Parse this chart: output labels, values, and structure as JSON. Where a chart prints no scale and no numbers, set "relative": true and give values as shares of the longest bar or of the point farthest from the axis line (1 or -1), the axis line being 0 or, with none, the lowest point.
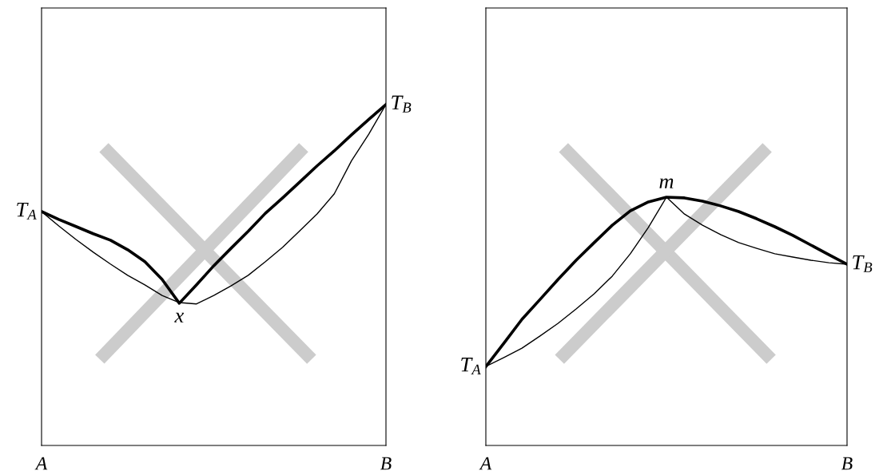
{
  "chart_data": [
    {
      "type": "line",
      "relative": true,
      "categories": [
        "A",
        null,
        null,
        null,
        null,
        null,
        null,
        null,
        null,
        null,
        null,
        null,
        null,
        null,
        null,
        null,
        null,
        null,
        null,
        null,
        "B"
      ],
      "series": [
        {
          "color": "#000000",
          "values": [
            0.686,
            0.663,
            0.642,
            0.621,
            0.602,
            0.574,
            0.539,
            0.487,
            0.417,
            0.471,
            0.527,
            0.578,
            0.628,
            0.681,
            0.726,
            0.773,
            0.82,
            0.864,
            0.911,
            0.956,
            1.0
          ]
        },
        {
          "color": "#000000",
          "values": [
            0.686,
            0.644,
            0.604,
            0.567,
            0.532,
            0.499,
            0.471,
            0.44,
            0.419,
            0.415,
            0.44,
            0.468,
            0.499,
            0.539,
            0.581,
            0.63,
            0.679,
            0.738,
            0.835,
            0.913,
            1.0
          ]
        }
      ],
      "annotations": [
        {
          "text": "T$_{A}$",
          "x": "A",
          "y": 0.686
        },
        {
          "text": "x",
          "y": 0.417
        },
        {
          "text": "T$_{B}$",
          "x": "B",
          "y": 1.0
        }
      ]
    },
    {
      "type": "line",
      "relative": true,
      "categories": [
        "A",
        null,
        null,
        null,
        null,
        null,
        null,
        null,
        null,
        null,
        null,
        null,
        null,
        null,
        null,
        null,
        null,
        null,
        null,
        null,
        "B"
      ],
      "series": [
        {
          "color": "#000000",
          "values": [
            0.318,
            0.412,
            0.508,
            0.588,
            0.669,
            0.746,
            0.817,
            0.887,
            0.945,
            0.981,
            1.0,
            0.997,
            0.984,
            0.965,
            0.942,
            0.913,
            0.881,
            0.846,
            0.807,
            0.768,
            0.73
          ]
        },
        {
          "color": "#000000",
          "values": [
            0.318,
            0.354,
            0.392,
            0.441,
            0.492,
            0.55,
            0.611,
            0.682,
            0.772,
            0.878,
            1.0,
            0.932,
            0.887,
            0.849,
            0.817,
            0.794,
            0.772,
            0.759,
            0.746,
            0.736,
            0.73
          ]
        }
      ],
      "annotations": [
        {
          "text": "T$_{A}$",
          "x": "A",
          "y": 0.318
        },
        {
          "text": "m",
          "y": 1.0
        },
        {
          "text": "T$_{B}$",
          "x": "B",
          "y": 0.73
        }
      ]
    }
  ]
}
